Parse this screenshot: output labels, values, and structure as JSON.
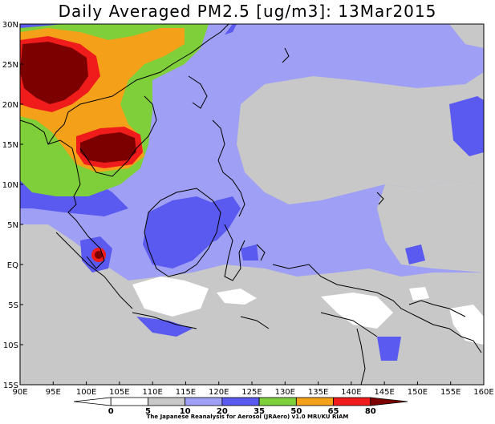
{
  "title": "Daily Averaged PM2.5 [ug/m3]: 13Mar2015",
  "map": {
    "lon_range": [
      90,
      160
    ],
    "lat_range": [
      -15,
      30
    ],
    "lat_ticks": [
      "30N",
      "25N",
      "20N",
      "15N",
      "10N",
      "5N",
      "EQ",
      "5S",
      "10S",
      "15S"
    ],
    "lon_ticks": [
      "90E",
      "95E",
      "100E",
      "105E",
      "110E",
      "115E",
      "120E",
      "125E",
      "130E",
      "135E",
      "140E",
      "145E",
      "150E",
      "155E",
      "160E"
    ]
  },
  "colorbar": {
    "levels": [
      "0",
      "5",
      "10",
      "20",
      "35",
      "50",
      "65",
      "80"
    ],
    "colors": [
      "#ffffff",
      "#ffffff",
      "#c8c8c8",
      "#9f9ff5",
      "#5a5af0",
      "#7fcf3a",
      "#f5a019",
      "#f01c1c",
      "#7d0000"
    ]
  },
  "credit": "The Japanese Reanalysis for Aerosol (JRAero) v1.0 MRI/KU RIAM"
}
